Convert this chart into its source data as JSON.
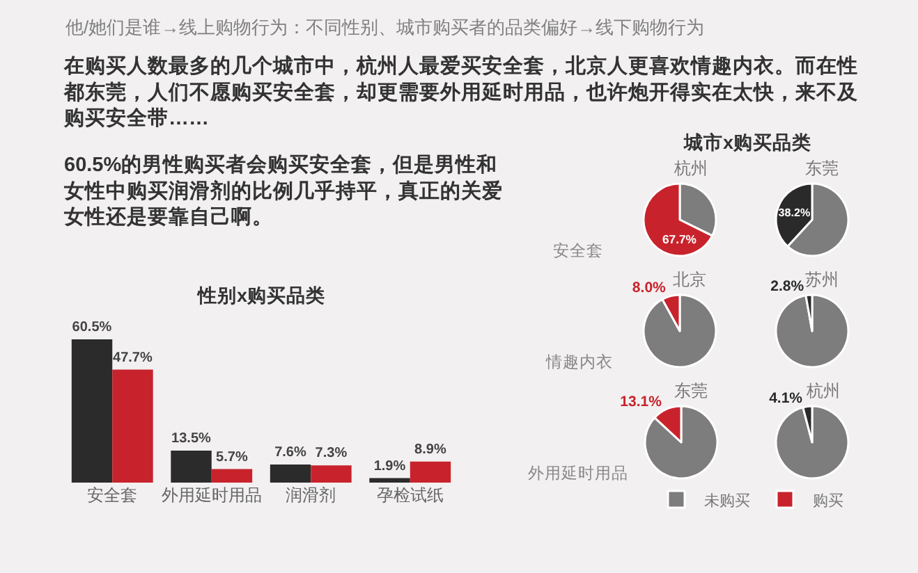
{
  "chart_data": [
    {
      "type": "other",
      "title": "他/她们是谁→线上购物行为：不同性别、城市购买者的品类偏好→线下购物行为",
      "annotations": [
        "在购买人数最多的几个城市中，杭州人最爱买安全套，北京人更喜欢情趣内衣。而在性都东莞，人们不愿购买安全套，却更需要外用延时用品，也许炮开得实在太快，来不及购买安全带……",
        "60.5%的男性购买者会购买安全套，但是男性和女性中购买润滑剂的比例几乎持平，真正的关爱女性还是要靠自己啊。"
      ]
    },
    {
      "type": "bar",
      "title": "性别x购买品类",
      "categories": [
        "安全套",
        "外用延时用品",
        "润滑剂",
        "孕检试纸"
      ],
      "series": [
        {
          "color": "#2b2b2b",
          "values": [
            60.5,
            13.5,
            7.6,
            1.9
          ],
          "value_labels": [
            "60.5%",
            "13.5%",
            "7.6%",
            "1.9%"
          ]
        },
        {
          "color": "#c8232c",
          "values": [
            47.7,
            5.7,
            7.3,
            8.9
          ],
          "value_labels": [
            "47.7%",
            "5.7%",
            "7.3%",
            "8.9%"
          ]
        }
      ]
    },
    {
      "type": "pie",
      "title": "城市x购买品类",
      "categories": [
        "未购买",
        "购买"
      ],
      "legend": "bottom",
      "annotations": [
        "安全套",
        "情趣内衣",
        "外用延时用品"
      ],
      "series": [
        {
          "name": "杭州",
          "values": [
            32.3,
            67.7
          ],
          "colors": [
            "#7d7d7d",
            "#c8232c"
          ],
          "value_labels": [
            null,
            "67.7%"
          ]
        },
        {
          "name": "东莞",
          "values": [
            61.8,
            38.2
          ],
          "colors": [
            "#7d7d7d",
            "#2a2a2a"
          ],
          "value_labels": [
            null,
            "38.2%"
          ]
        },
        {
          "name": "北京",
          "values": [
            92.0,
            8.0
          ],
          "colors": [
            "#7d7d7d",
            "#c8232c"
          ],
          "value_labels": [
            null,
            "8.0%"
          ]
        },
        {
          "name": "苏州",
          "values": [
            97.2,
            2.8
          ],
          "colors": [
            "#7d7d7d",
            "#2a2a2a"
          ],
          "value_labels": [
            null,
            "2.8%"
          ]
        },
        {
          "name": "东莞",
          "values": [
            86.9,
            13.1
          ],
          "colors": [
            "#7d7d7d",
            "#c8232c"
          ],
          "value_labels": [
            null,
            "13.1%"
          ]
        },
        {
          "name": "杭州",
          "values": [
            95.9,
            4.1
          ],
          "colors": [
            "#7d7d7d",
            "#2a2a2a"
          ],
          "value_labels": [
            null,
            "4.1%"
          ]
        }
      ]
    }
  ]
}
